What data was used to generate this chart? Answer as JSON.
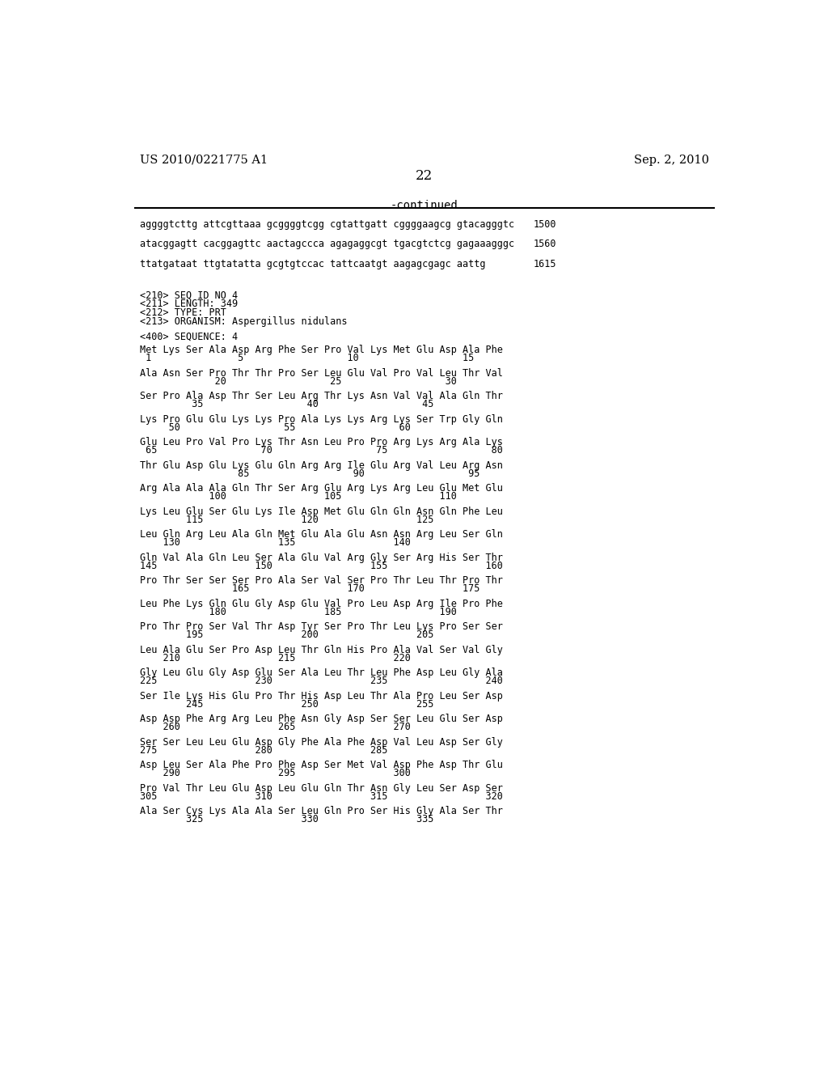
{
  "header_left": "US 2010/0221775 A1",
  "header_right": "Sep. 2, 2010",
  "page_number": "22",
  "continued_label": "-continued",
  "background_color": "#ffffff",
  "text_color": "#000000",
  "mono_lines": [
    [
      "aggggtcttg attcgttaaa gcggggtcgg cgtattgatt cggggaagcg gtacagggtc",
      "1500"
    ],
    [
      "atacggagtt cacggagttc aactagccca agagaggcgt tgacgtctcg gagaaagggc",
      "1560"
    ],
    [
      "ttatgataat ttgtatatta gcgtgtccac tattcaatgt aagagcgagc aattg",
      "1615"
    ]
  ],
  "meta_lines": [
    "<210> SEQ ID NO 4",
    "<211> LENGTH: 349",
    "<212> TYPE: PRT",
    "<213> ORGANISM: Aspergillus nidulans"
  ],
  "sequence_label": "<400> SEQUENCE: 4",
  "sequence_blocks": [
    {
      "aa_line": "Met Lys Ser Ala Asp Arg Phe Ser Pro Val Lys Met Glu Asp Ala Phe",
      "num_line": " 1               5                  10                  15"
    },
    {
      "aa_line": "Ala Asn Ser Pro Thr Thr Pro Ser Leu Glu Val Pro Val Leu Thr Val",
      "num_line": "             20                  25                  30"
    },
    {
      "aa_line": "Ser Pro Ala Asp Thr Ser Leu Arg Thr Lys Asn Val Val Ala Gln Thr",
      "num_line": "         35                  40                  45"
    },
    {
      "aa_line": "Lys Pro Glu Glu Lys Lys Pro Ala Lys Lys Arg Lys Ser Trp Gly Gln",
      "num_line": "     50                  55                  60"
    },
    {
      "aa_line": "Glu Leu Pro Val Pro Lys Thr Asn Leu Pro Pro Arg Lys Arg Ala Lys",
      "num_line": " 65                  70                  75                  80"
    },
    {
      "aa_line": "Thr Glu Asp Glu Lys Glu Gln Arg Arg Ile Glu Arg Val Leu Arg Asn",
      "num_line": "                 85                  90                  95"
    },
    {
      "aa_line": "Arg Ala Ala Ala Gln Thr Ser Arg Glu Arg Lys Arg Leu Glu Met Glu",
      "num_line": "            100                 105                 110"
    },
    {
      "aa_line": "Lys Leu Glu Ser Glu Lys Ile Asp Met Glu Gln Gln Asn Gln Phe Leu",
      "num_line": "        115                 120                 125"
    },
    {
      "aa_line": "Leu Gln Arg Leu Ala Gln Met Glu Ala Glu Asn Asn Arg Leu Ser Gln",
      "num_line": "    130                 135                 140"
    },
    {
      "aa_line": "Gln Val Ala Gln Leu Ser Ala Glu Val Arg Gly Ser Arg His Ser Thr",
      "num_line": "145                 150                 155                 160"
    },
    {
      "aa_line": "Pro Thr Ser Ser Ser Pro Ala Ser Val Ser Pro Thr Leu Thr Pro Thr",
      "num_line": "                165                 170                 175"
    },
    {
      "aa_line": "Leu Phe Lys Gln Glu Gly Asp Glu Val Pro Leu Asp Arg Ile Pro Phe",
      "num_line": "            180                 185                 190"
    },
    {
      "aa_line": "Pro Thr Pro Ser Val Thr Asp Tyr Ser Pro Thr Leu Lys Pro Ser Ser",
      "num_line": "        195                 200                 205"
    },
    {
      "aa_line": "Leu Ala Glu Ser Pro Asp Leu Thr Gln His Pro Ala Val Ser Val Gly",
      "num_line": "    210                 215                 220"
    },
    {
      "aa_line": "Gly Leu Glu Gly Asp Glu Ser Ala Leu Thr Leu Phe Asp Leu Gly Ala",
      "num_line": "225                 230                 235                 240"
    },
    {
      "aa_line": "Ser Ile Lys His Glu Pro Thr His Asp Leu Thr Ala Pro Leu Ser Asp",
      "num_line": "        245                 250                 255"
    },
    {
      "aa_line": "Asp Asp Phe Arg Arg Leu Phe Asn Gly Asp Ser Ser Leu Glu Ser Asp",
      "num_line": "    260                 265                 270"
    },
    {
      "aa_line": "Ser Ser Leu Leu Glu Asp Gly Phe Ala Phe Asp Val Leu Asp Ser Gly",
      "num_line": "275                 280                 285"
    },
    {
      "aa_line": "Asp Leu Ser Ala Phe Pro Phe Asp Ser Met Val Asp Phe Asp Thr Glu",
      "num_line": "    290                 295                 300"
    },
    {
      "aa_line": "Pro Val Thr Leu Glu Asp Leu Glu Gln Thr Asn Gly Leu Ser Asp Ser",
      "num_line": "305                 310                 315                 320"
    },
    {
      "aa_line": "Ala Ser Cys Lys Ala Ala Ser Leu Gln Pro Ser His Gly Ala Ser Thr",
      "num_line": "        325                 330                 335"
    }
  ]
}
